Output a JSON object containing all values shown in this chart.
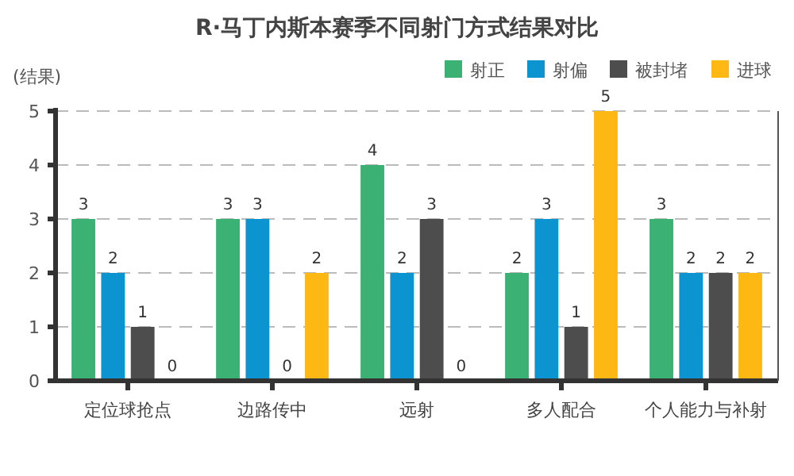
{
  "chart_data": {
    "type": "bar",
    "title": "R·马丁内斯本赛季不同射门方式结果对比",
    "ylabel": "(结果)",
    "categories": [
      "定位球抢点",
      "边路传中",
      "远射",
      "多人配合",
      "个人能力与补射"
    ],
    "series": [
      {
        "name": "射正",
        "color": "#3bb273",
        "values": [
          3,
          3,
          4,
          2,
          3
        ]
      },
      {
        "name": "射偏",
        "color": "#0b94d0",
        "values": [
          2,
          3,
          2,
          3,
          2
        ]
      },
      {
        "name": "被封堵",
        "color": "#4d4d4d",
        "values": [
          1,
          0,
          3,
          1,
          2
        ]
      },
      {
        "name": "进球",
        "color": "#fdb813",
        "values": [
          0,
          2,
          0,
          5,
          2
        ]
      }
    ],
    "ylim": [
      0,
      5
    ],
    "yticks": [
      0,
      1,
      2,
      3,
      4,
      5
    ],
    "grid": "y",
    "legend": "top right",
    "data_labels": true
  }
}
